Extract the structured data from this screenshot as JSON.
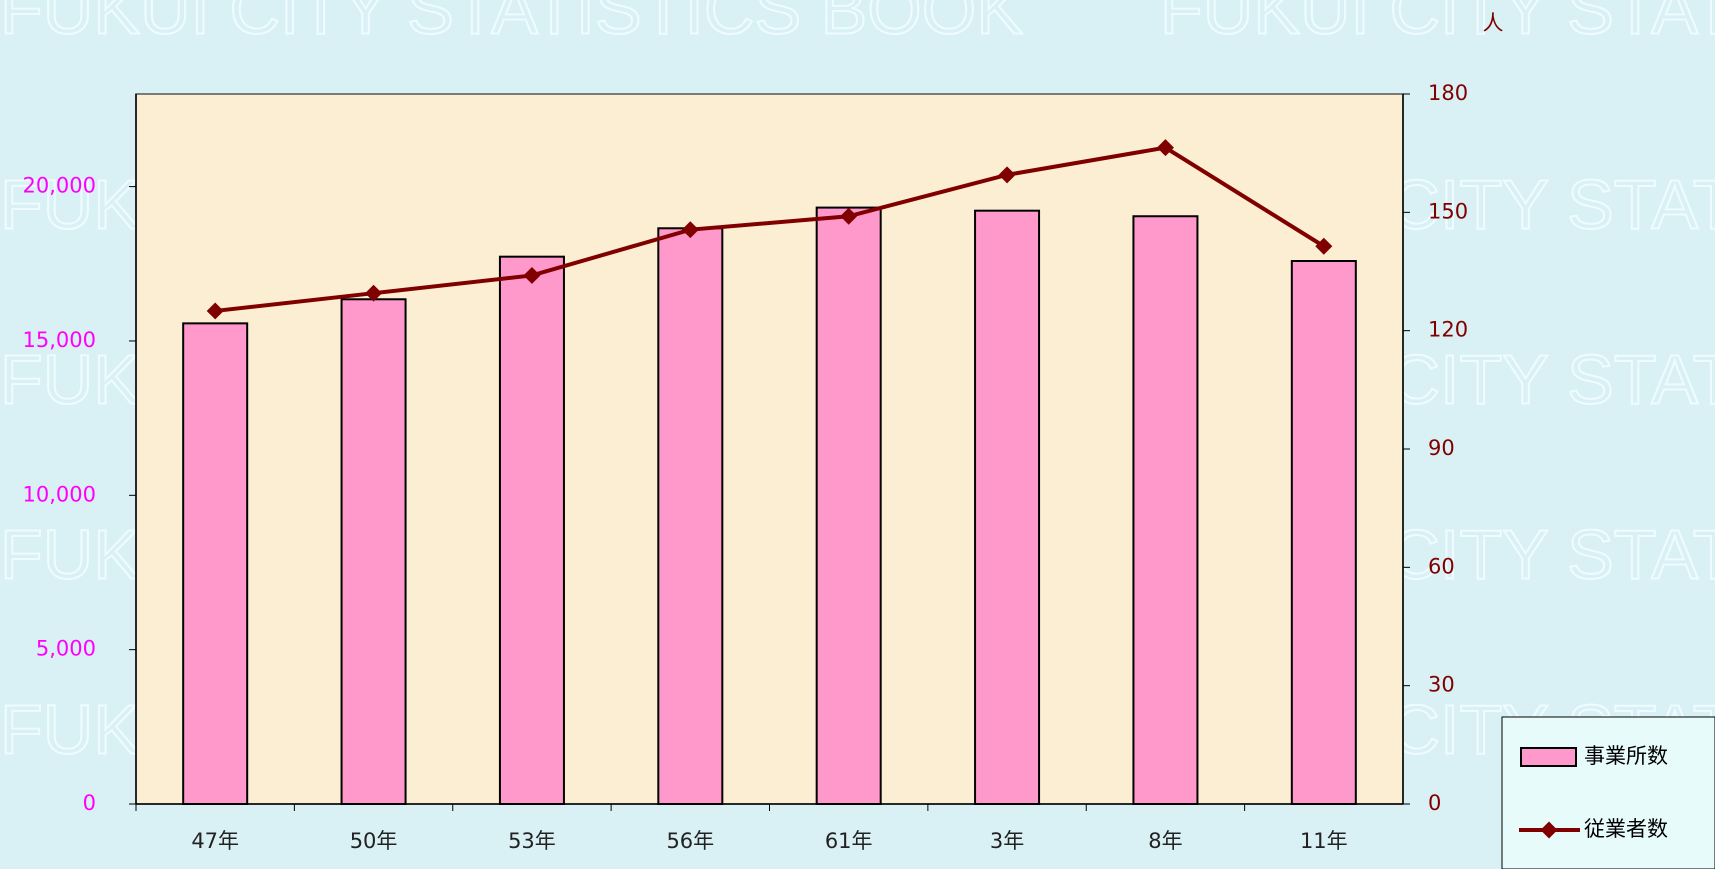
{
  "chart_data": {
    "type": "bar_line",
    "watermark": "FUKUI CITY STATISTICS BOOK",
    "y2_unit": "人",
    "categories": [
      "47年",
      "50年",
      "53年",
      "56年",
      "61年",
      "3年",
      "8年",
      "11年"
    ],
    "series": [
      {
        "name": "事業所数",
        "type": "bar",
        "color": "#ff99cc",
        "values": [
          15570,
          16350,
          17730,
          18650,
          19320,
          19220,
          19040,
          17590
        ]
      },
      {
        "name": "従業者数",
        "type": "line",
        "axis": "y2",
        "color": "#800000",
        "values": [
          125,
          129.5,
          134,
          145.6,
          149,
          159.5,
          166.4,
          141.4
        ]
      }
    ],
    "ylim": [
      0,
      23000
    ],
    "yticks": [
      0,
      {
        "value": 5000,
        "label": "5,000"
      },
      {
        "value": 10000,
        "label": "10,000"
      },
      {
        "value": 15000,
        "label": "15,000"
      },
      {
        "value": 20000,
        "label": "20,000"
      }
    ],
    "y2lim": [
      0,
      180
    ],
    "y2ticks": [
      0,
      30,
      60,
      90,
      120,
      150,
      180
    ],
    "legend": "bottom-right"
  }
}
